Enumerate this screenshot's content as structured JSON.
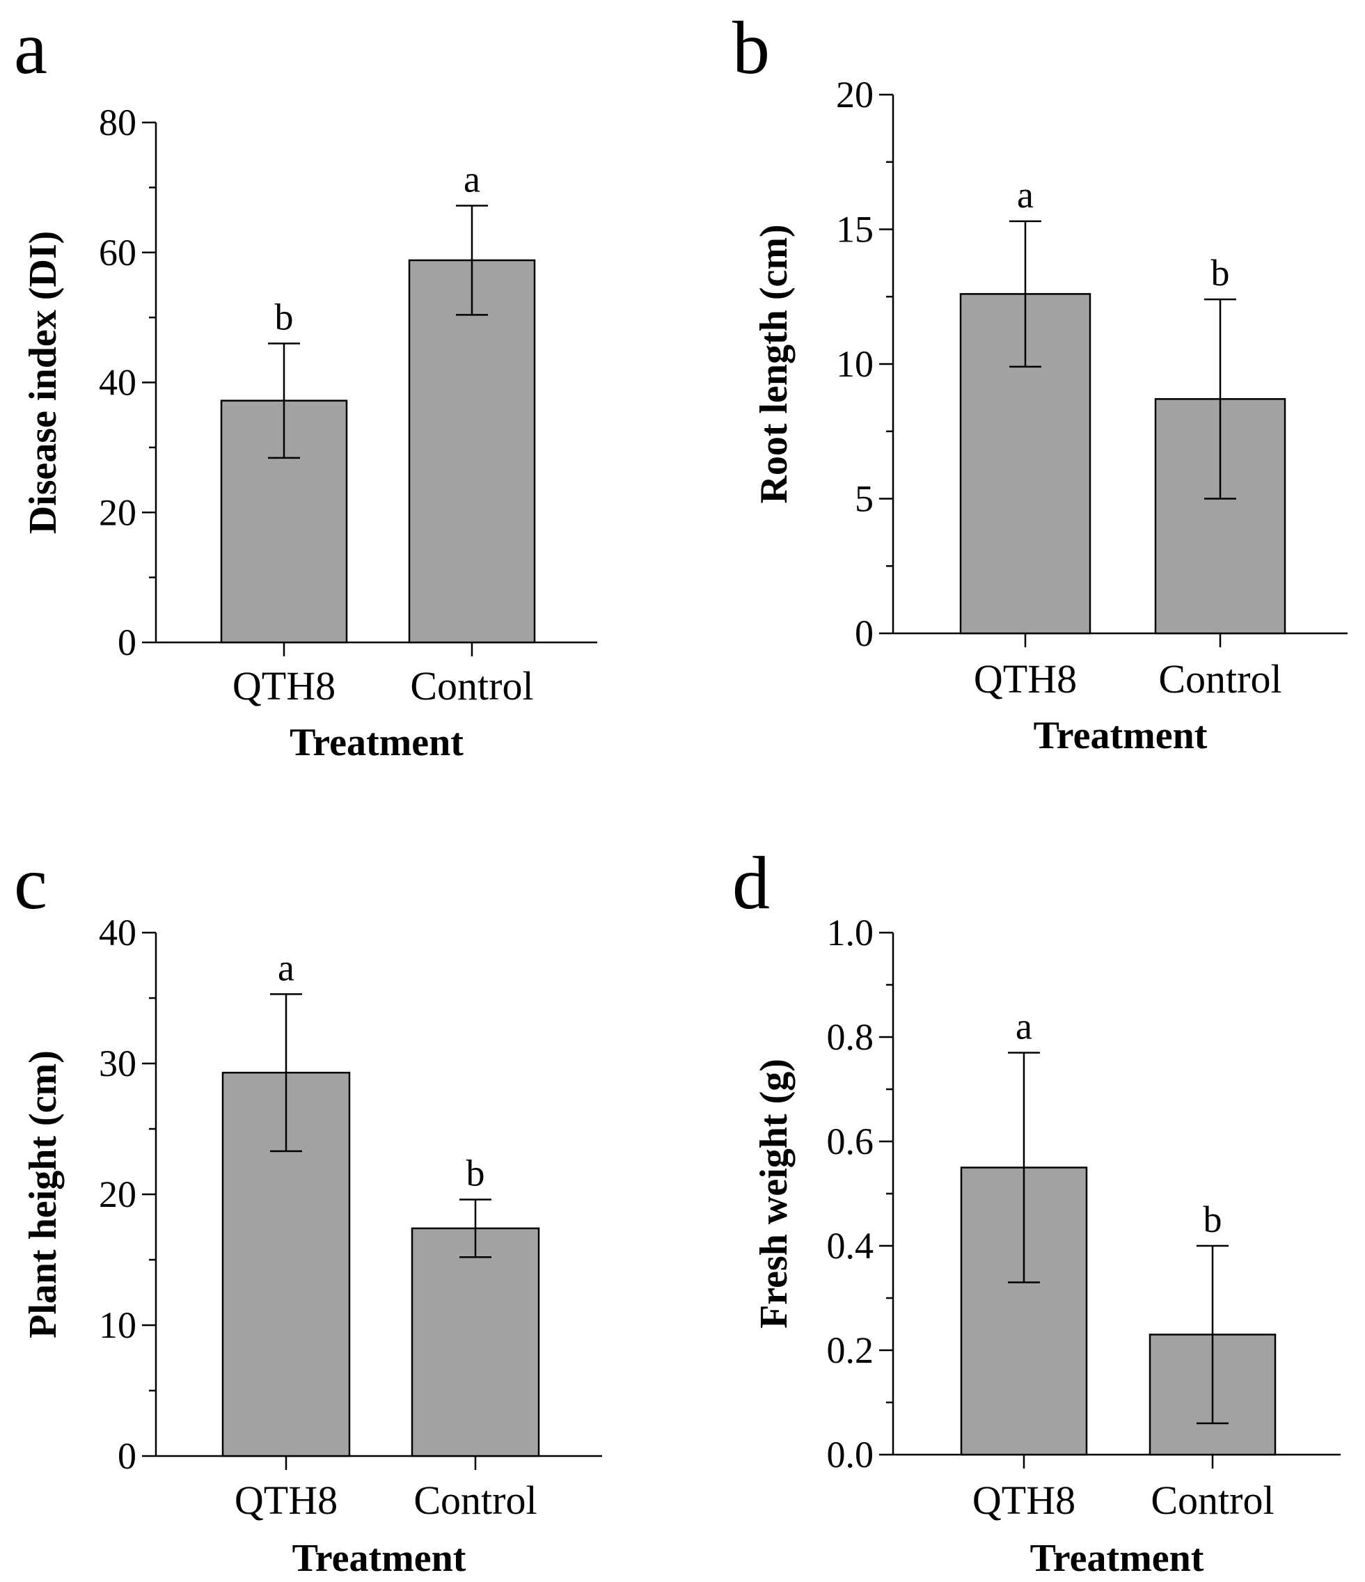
{
  "chart_data": [
    {
      "type": "bar",
      "panel": "a",
      "categories": [
        "QTH8",
        "Control"
      ],
      "values": [
        37.2,
        58.8
      ],
      "errors": [
        8.8,
        8.4
      ],
      "significance": [
        "b",
        "a"
      ],
      "xlabel": "Treatment",
      "ylabel": "Disease index (DI)",
      "ylim": [
        0,
        80
      ],
      "major_ticks": [
        0,
        20,
        40,
        60,
        80
      ],
      "tick_labels": [
        "0",
        "20",
        "40",
        "60",
        "80"
      ],
      "minor_step": 10
    },
    {
      "type": "bar",
      "panel": "b",
      "categories": [
        "QTH8",
        "Control"
      ],
      "values": [
        12.6,
        8.7
      ],
      "errors": [
        2.7,
        3.7
      ],
      "significance": [
        "a",
        "b"
      ],
      "xlabel": "Treatment",
      "ylabel": "Root length (cm)",
      "ylim": [
        0,
        20
      ],
      "major_ticks": [
        0,
        5,
        10,
        15,
        20
      ],
      "tick_labels": [
        "0",
        "5",
        "10",
        "15",
        "20"
      ],
      "minor_step": 2.5
    },
    {
      "type": "bar",
      "panel": "c",
      "categories": [
        "QTH8",
        "Control"
      ],
      "values": [
        29.3,
        17.4
      ],
      "errors": [
        6.0,
        2.2
      ],
      "significance": [
        "a",
        "b"
      ],
      "xlabel": "Treatment",
      "ylabel": "Plant height (cm)",
      "ylim": [
        0,
        40
      ],
      "major_ticks": [
        0,
        10,
        20,
        30,
        40
      ],
      "tick_labels": [
        "0",
        "10",
        "20",
        "30",
        "40"
      ],
      "minor_step": 5
    },
    {
      "type": "bar",
      "panel": "d",
      "categories": [
        "QTH8",
        "Control"
      ],
      "values": [
        0.55,
        0.23
      ],
      "errors": [
        0.22,
        0.17
      ],
      "significance": [
        "a",
        "b"
      ],
      "xlabel": "Treatment",
      "ylabel": "Fresh weight (g)",
      "ylim": [
        0,
        1.0
      ],
      "major_ticks": [
        0,
        0.2,
        0.4,
        0.6,
        0.8,
        1.0
      ],
      "tick_labels": [
        "0.0",
        "0.2",
        "0.4",
        "0.6",
        "0.8",
        "1.0"
      ],
      "minor_step": 0.1
    }
  ]
}
